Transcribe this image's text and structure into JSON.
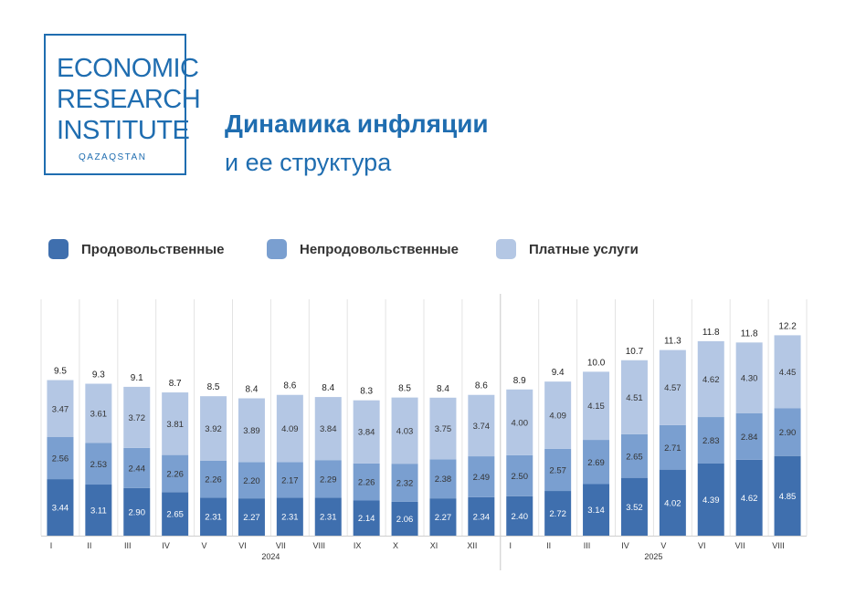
{
  "logo": {
    "line1": "ECONOMIC",
    "line2": "RESEARCH",
    "line3": "INSTITUTE",
    "sub": "QAZAQSTAN",
    "color": "#1f6db0"
  },
  "header": {
    "title": "Динамика инфляции",
    "subtitle": "и ее структура"
  },
  "legend": [
    {
      "label": "Продовольственные",
      "color": "#3f6fae"
    },
    {
      "label": "Непродовольственные",
      "color": "#7a9fd0"
    },
    {
      "label": "Платные услуги",
      "color": "#b4c7e4"
    }
  ],
  "chart_data": {
    "type": "bar",
    "stacked": true,
    "categories": [
      "I",
      "II",
      "III",
      "IV",
      "V",
      "VI",
      "VII",
      "VIII",
      "IX",
      "X",
      "XI",
      "XII",
      "I",
      "II",
      "III",
      "IV",
      "V",
      "VI",
      "VII",
      "VIII"
    ],
    "groups": [
      {
        "label": "2024",
        "start": 0,
        "end": 11
      },
      {
        "label": "2025",
        "start": 12,
        "end": 19
      }
    ],
    "series": [
      {
        "name": "Продовольственные",
        "color": "#3f6fae",
        "values": [
          3.44,
          3.11,
          2.9,
          2.65,
          2.31,
          2.27,
          2.31,
          2.31,
          2.14,
          2.06,
          2.27,
          2.34,
          2.4,
          2.72,
          3.14,
          3.52,
          4.02,
          4.39,
          4.62,
          4.85
        ]
      },
      {
        "name": "Непродовольственные",
        "color": "#7a9fd0",
        "values": [
          2.56,
          2.53,
          2.44,
          2.26,
          2.26,
          2.2,
          2.17,
          2.29,
          2.26,
          2.32,
          2.38,
          2.49,
          2.5,
          2.57,
          2.69,
          2.65,
          2.71,
          2.83,
          2.84,
          2.9
        ]
      },
      {
        "name": "Платные услуги",
        "color": "#b4c7e4",
        "values": [
          3.47,
          3.61,
          3.72,
          3.81,
          3.92,
          3.89,
          4.09,
          3.84,
          3.84,
          4.03,
          3.75,
          3.74,
          4.0,
          4.09,
          4.15,
          4.51,
          4.57,
          4.62,
          4.3,
          4.45
        ]
      }
    ],
    "totals": [
      "9.5",
      "9.3",
      "9.1",
      "8.7",
      "8.5",
      "8.4",
      "8.6",
      "8.4",
      "8.3",
      "8.5",
      "8.4",
      "8.6",
      "8.9",
      "9.4",
      "10.0",
      "10.7",
      "11.3",
      "11.8",
      "11.8",
      "12.2"
    ],
    "labels": {
      "Продовольственные": [
        "3.44",
        "3.11",
        "2.90",
        "2.65",
        "2.31",
        "2.27",
        "2.31",
        "2.31",
        "2.14",
        "2.06",
        "2.27",
        "2.34",
        "2.40",
        "2.72",
        "3.14",
        "3.52",
        "4.02",
        "4.39",
        "4.62",
        "4.85"
      ],
      "Непродовольственные": [
        "2.56",
        "2.53",
        "2.44",
        "2.26",
        "2.26",
        "2.20",
        "2.17",
        "2.29",
        "2.26",
        "2.32",
        "2.38",
        "2.49",
        "2.50",
        "2.57",
        "2.69",
        "2.65",
        "2.71",
        "2.83",
        "2.84",
        "2.90"
      ],
      "Платные услуги": [
        "3.47",
        "3.61",
        "3.72",
        "3.81",
        "3.92",
        "3.89",
        "4.09",
        "3.84",
        "3.84",
        "4.03",
        "3.75",
        "3.74",
        "4.00",
        "4.09",
        "4.15",
        "4.51",
        "4.57",
        "4.62",
        "4.30",
        "4.45"
      ]
    },
    "ylim": [
      0,
      12.4
    ],
    "grid": false,
    "legend_position": "top-left"
  }
}
